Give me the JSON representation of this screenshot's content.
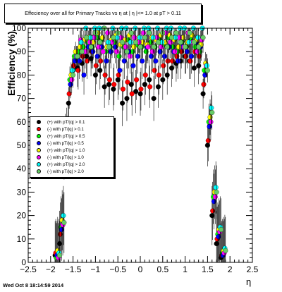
{
  "title": "Effeciency over all for Primary Tracks vs   η at | η |<= 1.0 at pT > 0.11",
  "footer": "Wed Oct  8 18:14:59 2014",
  "chart_data": {
    "type": "scatter",
    "xlabel": "η",
    "ylabel": "Efficiency (%)",
    "xlim": [
      -2.5,
      2.5
    ],
    "ylim": [
      0,
      100
    ],
    "xticks": [
      "−2.5",
      "−2",
      "−1.5",
      "−1",
      "−0.5",
      "0",
      "0.5",
      "1",
      "1.5",
      "2",
      "2.5"
    ],
    "yticks": [
      "0",
      "10",
      "20",
      "30",
      "40",
      "50",
      "60",
      "70",
      "80",
      "90",
      "100"
    ],
    "legend_position": "left-middle",
    "series": [
      {
        "name": "(+) with pT/|q| > 0.1",
        "color": "#000000",
        "marker": "circle",
        "x": [
          -1.85,
          -1.75,
          -1.65,
          -1.55,
          -1.45,
          -1.35,
          -1.25,
          -1.15,
          -1.05,
          -0.95,
          -0.85,
          -0.75,
          -0.65,
          -0.55,
          -0.45,
          -0.35,
          -0.25,
          -0.15,
          -0.05,
          0.05,
          0.15,
          0.25,
          0.35,
          0.45,
          0.55,
          0.65,
          0.75,
          0.85,
          0.95,
          1.05,
          1.15,
          1.25,
          1.35,
          1.45,
          1.55,
          1.65,
          1.75,
          1.85
        ],
        "y": [
          3,
          8,
          45,
          68,
          82,
          83,
          85,
          88,
          87,
          80,
          82,
          75,
          76,
          74,
          78,
          68,
          70,
          76,
          73,
          72,
          76,
          78,
          70,
          75,
          78,
          80,
          83,
          85,
          86,
          88,
          86,
          83,
          84,
          72,
          50,
          20,
          8,
          2
        ]
      },
      {
        "name": "(-) with pT/|q| > 0.1",
        "color": "#ff0000",
        "marker": "circle",
        "x": [
          -1.85,
          -1.75,
          -1.65,
          -1.55,
          -1.45,
          -1.35,
          -1.25,
          -1.15,
          -1.05,
          -0.95,
          -0.85,
          -0.75,
          -0.65,
          -0.55,
          -0.45,
          -0.35,
          -0.25,
          -0.15,
          -0.05,
          0.05,
          0.15,
          0.25,
          0.35,
          0.45,
          0.55,
          0.65,
          0.75,
          0.85,
          0.95,
          1.05,
          1.15,
          1.25,
          1.35,
          1.45,
          1.55,
          1.65,
          1.75,
          1.85
        ],
        "y": [
          4,
          12,
          50,
          72,
          84,
          82,
          88,
          86,
          90,
          84,
          86,
          80,
          78,
          76,
          80,
          74,
          77,
          72,
          78,
          74,
          80,
          75,
          82,
          80,
          84,
          86,
          86,
          88,
          90,
          88,
          86,
          90,
          88,
          76,
          52,
          22,
          10,
          3
        ]
      },
      {
        "name": "(+) with pT/|q| > 0.5",
        "color": "#00ff00",
        "marker": "circle",
        "x": [
          -1.85,
          -1.75,
          -1.65,
          -1.55,
          -1.45,
          -1.35,
          -1.25,
          -1.15,
          -1.05,
          -0.95,
          -0.85,
          -0.75,
          -0.65,
          -0.55,
          -0.45,
          -0.35,
          -0.25,
          -0.15,
          -0.05,
          0.05,
          0.15,
          0.25,
          0.35,
          0.45,
          0.55,
          0.65,
          0.75,
          0.85,
          0.95,
          1.05,
          1.15,
          1.25,
          1.35,
          1.45,
          1.55,
          1.65,
          1.75,
          1.85
        ],
        "y": [
          2,
          15,
          55,
          78,
          88,
          90,
          92,
          94,
          92,
          96,
          95,
          90,
          92,
          94,
          88,
          92,
          95,
          90,
          93,
          92,
          90,
          94,
          92,
          95,
          93,
          96,
          92,
          90,
          94,
          92,
          95,
          92,
          90,
          82,
          60,
          28,
          12,
          4
        ]
      },
      {
        "name": "(-) with pT/|q| > 0.5",
        "color": "#0000ff",
        "marker": "circle",
        "x": [
          -1.85,
          -1.75,
          -1.65,
          -1.55,
          -1.45,
          -1.35,
          -1.25,
          -1.15,
          -1.05,
          -0.95,
          -0.85,
          -0.75,
          -0.65,
          -0.55,
          -0.45,
          -0.35,
          -0.25,
          -0.15,
          -0.05,
          0.05,
          0.15,
          0.25,
          0.35,
          0.45,
          0.55,
          0.65,
          0.75,
          0.85,
          0.95,
          1.05,
          1.15,
          1.25,
          1.35,
          1.45,
          1.55,
          1.65,
          1.75,
          1.85
        ],
        "y": [
          3,
          14,
          52,
          76,
          86,
          86,
          80,
          92,
          90,
          88,
          92,
          86,
          90,
          92,
          82,
          86,
          90,
          84,
          88,
          86,
          92,
          88,
          86,
          90,
          88,
          92,
          90,
          86,
          92,
          90,
          88,
          94,
          92,
          80,
          58,
          26,
          11,
          3
        ]
      },
      {
        "name": "(+) with pT/|q| > 1.0",
        "color": "#ffff00",
        "marker": "circle",
        "x": [
          -1.85,
          -1.75,
          -1.65,
          -1.55,
          -1.45,
          -1.35,
          -1.25,
          -1.15,
          -1.05,
          -0.95,
          -0.85,
          -0.75,
          -0.65,
          -0.55,
          -0.45,
          -0.35,
          -0.25,
          -0.15,
          -0.05,
          0.05,
          0.15,
          0.25,
          0.35,
          0.45,
          0.55,
          0.65,
          0.75,
          0.85,
          0.95,
          1.05,
          1.15,
          1.25,
          1.35,
          1.45,
          1.55,
          1.65,
          1.75,
          1.85
        ],
        "y": [
          5,
          18,
          58,
          80,
          90,
          92,
          95,
          96,
          94,
          98,
          96,
          92,
          95,
          97,
          93,
          95,
          97,
          92,
          96,
          94,
          93,
          96,
          95,
          97,
          94,
          97,
          95,
          92,
          96,
          94,
          97,
          95,
          93,
          85,
          62,
          30,
          14,
          5
        ]
      },
      {
        "name": "(-) with pT/|q| > 1.0",
        "color": "#ff00ff",
        "marker": "circle",
        "x": [
          -1.85,
          -1.75,
          -1.65,
          -1.55,
          -1.45,
          -1.35,
          -1.25,
          -1.15,
          -1.05,
          -0.95,
          -0.85,
          -0.75,
          -0.65,
          -0.55,
          -0.45,
          -0.35,
          -0.25,
          -0.15,
          -0.05,
          0.05,
          0.15,
          0.25,
          0.35,
          0.45,
          0.55,
          0.65,
          0.75,
          0.85,
          0.95,
          1.05,
          1.15,
          1.25,
          1.35,
          1.45,
          1.55,
          1.65,
          1.75,
          1.85
        ],
        "y": [
          2,
          16,
          54,
          78,
          88,
          95,
          90,
          94,
          96,
          92,
          90,
          98,
          94,
          90,
          96,
          92,
          88,
          96,
          94,
          98,
          92,
          90,
          96,
          92,
          98,
          94,
          90,
          96,
          92,
          98,
          94,
          90,
          95,
          84,
          60,
          28,
          13,
          4
        ]
      },
      {
        "name": "(+) with pT/|q| > 2.0",
        "color": "#00ffff",
        "marker": "circle",
        "x": [
          -1.85,
          -1.75,
          -1.65,
          -1.55,
          -1.45,
          -1.35,
          -1.25,
          -1.15,
          -1.05,
          -0.95,
          -0.85,
          -0.75,
          -0.65,
          -0.55,
          -0.45,
          -0.35,
          -0.25,
          -0.15,
          -0.05,
          0.05,
          0.15,
          0.25,
          0.35,
          0.45,
          0.55,
          0.65,
          0.75,
          0.85,
          0.95,
          1.05,
          1.15,
          1.25,
          1.35,
          1.45,
          1.55,
          1.65,
          1.75,
          1.85
        ],
        "y": [
          4,
          20,
          60,
          82,
          88,
          94,
          100,
          96,
          100,
          100,
          100,
          94,
          100,
          96,
          100,
          100,
          94,
          100,
          96,
          100,
          100,
          96,
          100,
          94,
          100,
          100,
          96,
          100,
          100,
          94,
          100,
          96,
          100,
          84,
          66,
          32,
          15,
          6
        ]
      },
      {
        "name": "(-) with pT/|q| > 2.0",
        "color": "#66cc66",
        "marker": "circle",
        "x": [
          -1.85,
          -1.75,
          -1.65,
          -1.55,
          -1.45,
          -1.35,
          -1.25,
          -1.15,
          -1.05,
          -0.95,
          -0.85,
          -0.75,
          -0.65,
          -0.55,
          -0.45,
          -0.35,
          -0.25,
          -0.15,
          -0.05,
          0.05,
          0.15,
          0.25,
          0.35,
          0.45,
          0.55,
          0.65,
          0.75,
          0.85,
          0.95,
          1.05,
          1.15,
          1.25,
          1.35,
          1.45,
          1.55,
          1.65,
          1.75,
          1.85
        ],
        "y": [
          3,
          17,
          56,
          80,
          88,
          90,
          96,
          92,
          98,
          94,
          100,
          92,
          96,
          98,
          94,
          90,
          98,
          94,
          92,
          96,
          98,
          92,
          94,
          98,
          92,
          96,
          98,
          94,
          92,
          98,
          94,
          92,
          96,
          82,
          64,
          30,
          14,
          5
        ]
      }
    ]
  }
}
